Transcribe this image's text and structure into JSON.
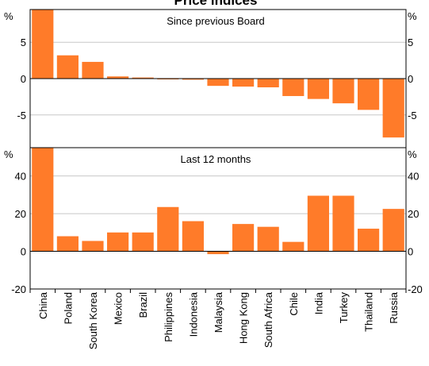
{
  "title": "Price indices",
  "bar_color": "#FF7B29",
  "categories": [
    "China",
    "Poland",
    "South Korea",
    "Mexico",
    "Brazil",
    "Philippines",
    "Indonesia",
    "Malaysia",
    "Hong Kong",
    "South Africa",
    "Chile",
    "India",
    "Turkey",
    "Thailand",
    "Russia"
  ],
  "chart_data": [
    {
      "type": "bar",
      "title": "Since previous Board",
      "ylabel": "%",
      "ylim": [
        -9.5,
        9.5
      ],
      "yticks": [
        -5,
        0,
        5
      ],
      "grid": true,
      "categories": [
        "China",
        "Poland",
        "South Korea",
        "Mexico",
        "Brazil",
        "Philippines",
        "Indonesia",
        "Malaysia",
        "Hong Kong",
        "South Africa",
        "Chile",
        "India",
        "Turkey",
        "Thailand",
        "Russia"
      ],
      "values": [
        9.5,
        3.2,
        2.3,
        0.3,
        0.15,
        -0.05,
        -0.15,
        -1.0,
        -1.1,
        -1.2,
        -2.4,
        -2.8,
        -3.4,
        -4.3,
        -8.1
      ]
    },
    {
      "type": "bar",
      "title": "Last 12 months",
      "ylabel": "%",
      "ylim": [
        -20,
        55
      ],
      "yticks": [
        -20,
        0,
        20,
        40
      ],
      "grid": true,
      "categories": [
        "China",
        "Poland",
        "South Korea",
        "Mexico",
        "Brazil",
        "Philippines",
        "Indonesia",
        "Malaysia",
        "Hong Kong",
        "South Africa",
        "Chile",
        "India",
        "Turkey",
        "Thailand",
        "Russia"
      ],
      "values": [
        55,
        8,
        5.5,
        10,
        10,
        23.5,
        16,
        -1.5,
        14.5,
        13,
        5,
        29.5,
        29.5,
        12,
        22.5
      ]
    }
  ]
}
